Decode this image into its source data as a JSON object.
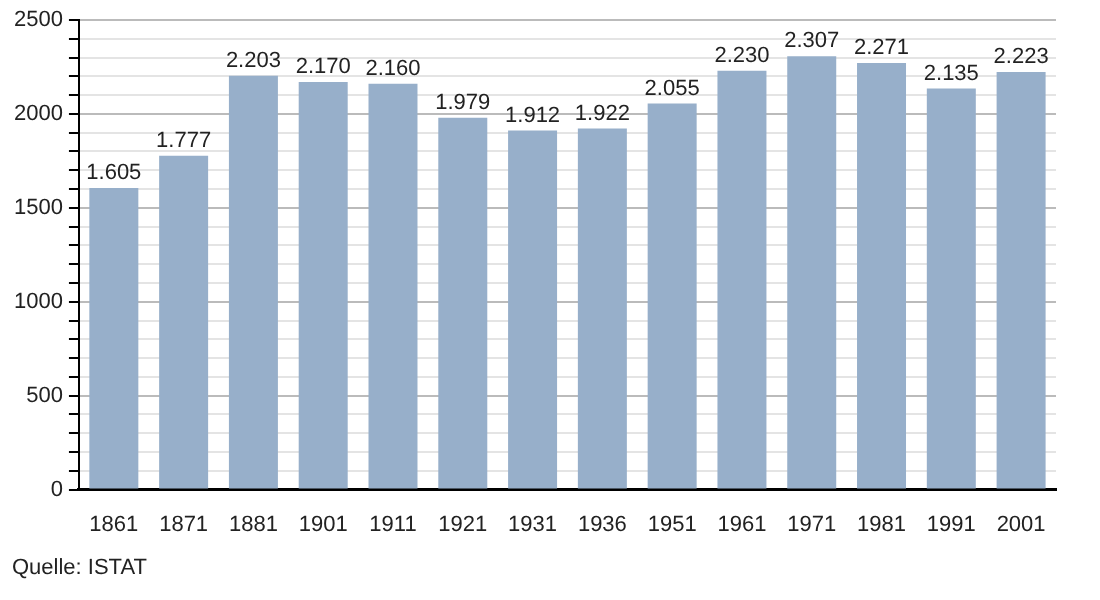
{
  "chart_data": {
    "type": "bar",
    "categories": [
      "1861",
      "1871",
      "1881",
      "1901",
      "1911",
      "1921",
      "1931",
      "1936",
      "1951",
      "1961",
      "1971",
      "1981",
      "1991",
      "2001"
    ],
    "values": [
      1605,
      1777,
      2203,
      2170,
      2160,
      1979,
      1912,
      1922,
      2055,
      2230,
      2307,
      2271,
      2135,
      2223
    ],
    "value_labels": [
      "1.605",
      "1.777",
      "2.203",
      "2.170",
      "2.160",
      "1.979",
      "1.912",
      "1.922",
      "2.055",
      "2.230",
      "2.307",
      "2.271",
      "2.135",
      "2.223"
    ],
    "color": "#97afca",
    "ylim": [
      0,
      2500
    ],
    "yticks": [
      0,
      {
        "value": 100,
        "label": null
      },
      {
        "value": 200,
        "label": null
      },
      {
        "value": 300,
        "label": null
      },
      {
        "value": 400,
        "label": null
      },
      500,
      {
        "value": 600,
        "label": null
      },
      {
        "value": 700,
        "label": null
      },
      {
        "value": 800,
        "label": null
      },
      {
        "value": 900,
        "label": null
      },
      1000,
      {
        "value": 1100,
        "label": null
      },
      {
        "value": 1200,
        "label": null
      },
      {
        "value": 1300,
        "label": null
      },
      {
        "value": 1400,
        "label": null
      },
      1500,
      {
        "value": 1600,
        "label": null
      },
      {
        "value": 1700,
        "label": null
      },
      {
        "value": 1800,
        "label": null
      },
      {
        "value": 1900,
        "label": null
      },
      2000,
      {
        "value": 2100,
        "label": null
      },
      {
        "value": 2200,
        "label": null
      },
      {
        "value": 2300,
        "label": null
      },
      {
        "value": 2400,
        "label": null
      },
      2500
    ],
    "grid": "y",
    "annotations": [
      "Quelle: ISTAT"
    ]
  }
}
